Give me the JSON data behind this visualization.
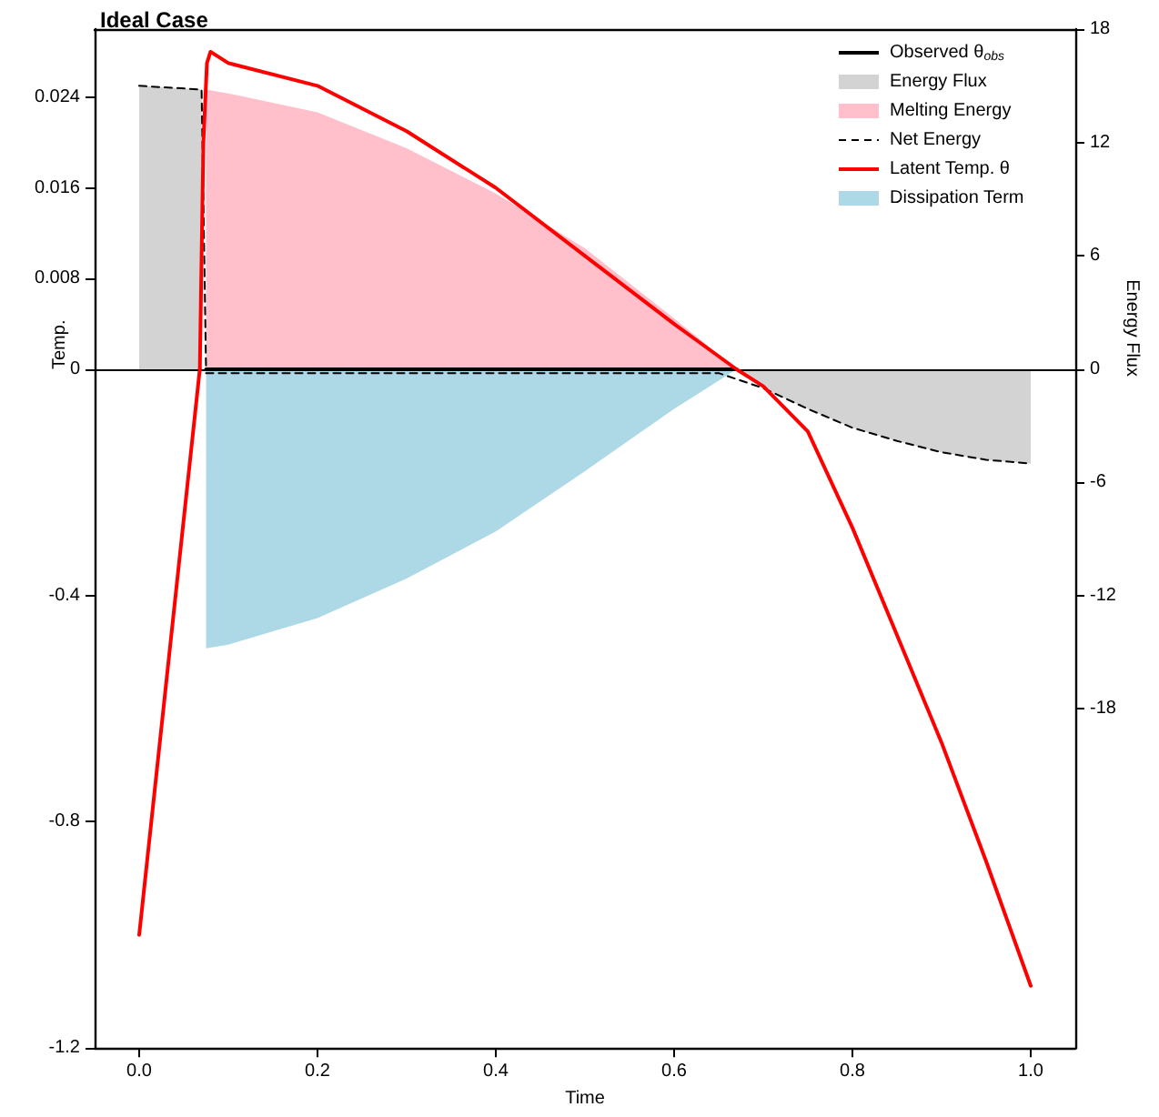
{
  "chart_data": [
    {
      "type": "line",
      "title": "Ideal Case",
      "ylabel": "Temp.",
      "y2label": "Energy Flux",
      "legend": "top right",
      "tick_labels": "y",
      "grid": false,
      "marker": "none",
      "line_style": "solid",
      "xlim": [
        -0.05,
        1.05
      ],
      "ylim": [
        0,
        0.03
      ],
      "yticks": [
        0.008,
        0.016,
        0.024
      ],
      "y2lim": [
        0,
        18
      ],
      "y2ticks": [
        6,
        12,
        18
      ],
      "series": [
        {
          "name": "Observed θ$_{obs}$",
          "color": "#000000",
          "x": [
            0.075,
            0.2,
            0.4,
            0.6,
            0.67
          ],
          "values": [
            0,
            0,
            0,
            0,
            0
          ]
        },
        {
          "name": "Energy Flux",
          "type": "area",
          "axis": "y2",
          "color": "#d3d3d3",
          "x": [
            0,
            0.07
          ],
          "values": [
            15,
            14.8
          ]
        },
        {
          "name": "Melting Energy",
          "type": "area",
          "axis": "y2",
          "color": "#ffc0cb",
          "x": [
            0.075,
            0.1,
            0.2,
            0.3,
            0.4,
            0.5,
            0.6,
            0.67
          ],
          "values": [
            14.8,
            14.6,
            13.6,
            11.7,
            9.3,
            6.4,
            2.7,
            0
          ]
        },
        {
          "name": "Net Energy",
          "axis": "y2",
          "color": "#000000",
          "line_style": "dashed",
          "x": [
            0,
            0.07,
            0.075
          ],
          "values": [
            15,
            14.8,
            0
          ]
        },
        {
          "name": "Latent Temp. θ",
          "color": "#ff0000",
          "x": [
            0.068,
            0.072,
            0.076,
            0.08,
            0.1,
            0.2,
            0.3,
            0.4,
            0.5,
            0.6,
            0.67
          ],
          "values": [
            0,
            0.02,
            0.027,
            0.028,
            0.027,
            0.025,
            0.021,
            0.016,
            0.01,
            0.004,
            0
          ]
        }
      ]
    },
    {
      "type": "line",
      "xlabel": "Time",
      "grid": false,
      "marker": "none",
      "line_style": "solid",
      "xlim": [
        -0.05,
        1.05
      ],
      "xticks": [
        {
          "value": 0,
          "label": "0.0"
        },
        {
          "value": 0.2,
          "label": "0.2"
        },
        {
          "value": 0.4,
          "label": "0.4"
        },
        {
          "value": 0.6,
          "label": "0.6"
        },
        {
          "value": 0.8,
          "label": "0.8"
        },
        {
          "value": 1,
          "label": "1.0"
        }
      ],
      "ylim": [
        -1.2,
        0
      ],
      "yticks": [
        -1.2,
        -0.8,
        -0.4,
        0
      ],
      "y2lim": [
        -36,
        0
      ],
      "y2ticks": [
        -18,
        -12,
        -6,
        0
      ],
      "ref_lines": [
        {
          "axis": "y",
          "value": 0,
          "color": "#000000"
        }
      ],
      "series": [
        {
          "name": "Energy Flux",
          "type": "area",
          "axis": "y2",
          "color": "#d3d3d3",
          "x": [
            0.67,
            0.7,
            0.75,
            0.8,
            0.85,
            0.9,
            0.95,
            1.0
          ],
          "values": [
            0,
            -1,
            -2.1,
            -3.1,
            -3.8,
            -4.4,
            -4.8,
            -5
          ]
        },
        {
          "name": "Dissipation Term",
          "type": "area",
          "axis": "y2",
          "color": "#add8e6",
          "x": [
            0.075,
            0.1,
            0.2,
            0.3,
            0.4,
            0.5,
            0.6,
            0.67
          ],
          "values": [
            -14.8,
            -14.6,
            -13.2,
            -11.1,
            -8.6,
            -5.4,
            -2.1,
            0
          ]
        },
        {
          "name": "Net Energy",
          "axis": "y2",
          "color": "#000000",
          "line_style": "dashed",
          "x": [
            0.075,
            0.1,
            0.3,
            0.5,
            0.65,
            0.7,
            0.75,
            0.8,
            0.85,
            0.9,
            0.95,
            1.0
          ],
          "values": [
            -0.2,
            -0.2,
            -0.2,
            -0.2,
            -0.2,
            -1,
            -2.1,
            -3.1,
            -3.8,
            -4.4,
            -4.8,
            -5
          ]
        },
        {
          "name": "Latent Temp. θ",
          "color": "#ff0000",
          "x": [
            0,
            0.068,
            0.3,
            0.67,
            0.7,
            0.75,
            0.8,
            0.85,
            0.9,
            0.95,
            1.0
          ],
          "values": [
            -1.0,
            0,
            null,
            0,
            -0.03,
            -0.11,
            -0.28,
            -0.47,
            -0.66,
            -0.87,
            -1.09
          ]
        }
      ]
    }
  ]
}
